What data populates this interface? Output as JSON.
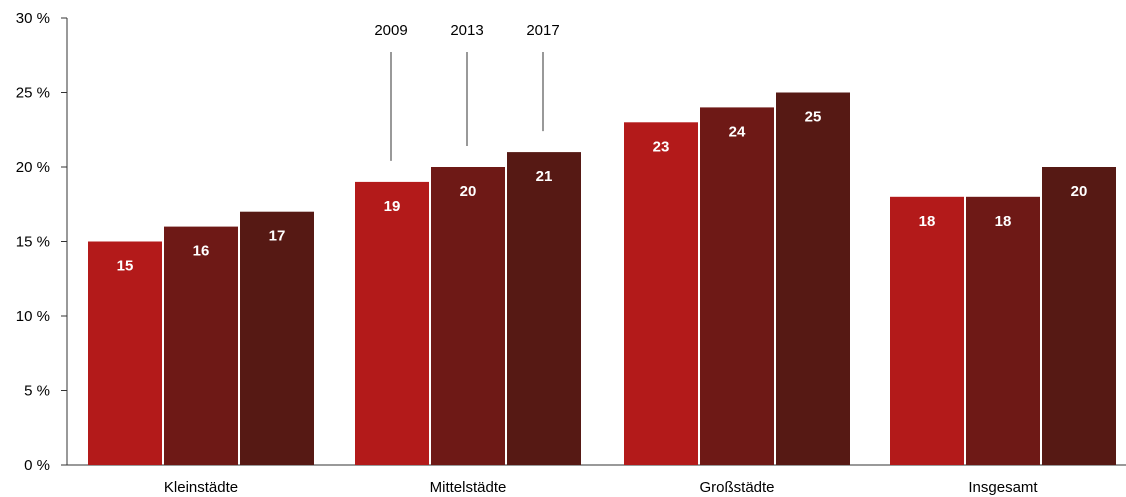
{
  "chart_data": {
    "type": "bar",
    "categories": [
      "Kleinstädte",
      "Mittelstädte",
      "Großstädte",
      "Insgesamt"
    ],
    "series": [
      {
        "name": "2009",
        "values": [
          15,
          19,
          23,
          18
        ],
        "color": "#b31a1a"
      },
      {
        "name": "2013",
        "values": [
          16,
          20,
          24,
          18
        ],
        "color": "#6e1916"
      },
      {
        "name": "2017",
        "values": [
          17,
          21,
          25,
          20
        ],
        "color": "#561914"
      }
    ],
    "yticks": [
      "0 %",
      "5 %",
      "10 %",
      "15 %",
      "20 %",
      "25 %",
      "30 %"
    ],
    "ylim": [
      0,
      30
    ],
    "grid": false,
    "legend": "series labels with leader lines above Mittelstädte"
  }
}
